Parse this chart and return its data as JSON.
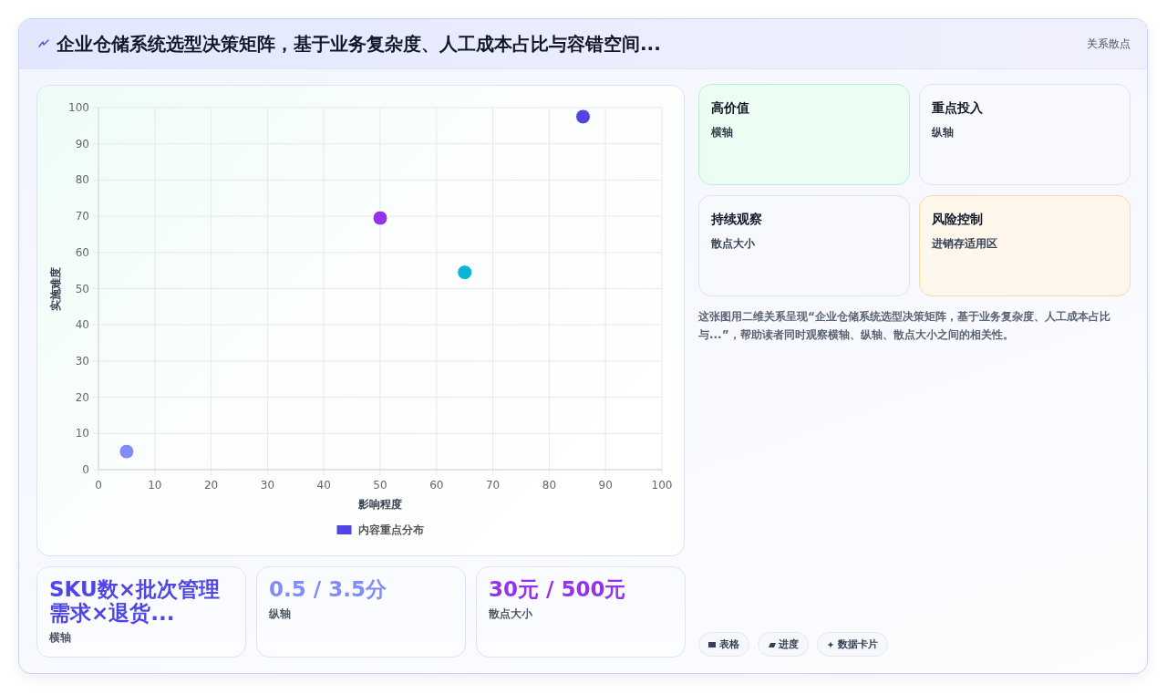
{
  "chart_data": [
    {
      "type": "scatter",
      "title": "企业仓储系统选型决策矩阵，基于业务复杂度、人工成本占比与容错空间...",
      "xlabel": "影响程度",
      "ylabel": "实施难度",
      "xlim": [
        0,
        100
      ],
      "ylim": [
        0,
        100
      ],
      "xticks": [
        0,
        10,
        20,
        30,
        40,
        50,
        60,
        70,
        80,
        90,
        100
      ],
      "yticks": [
        0,
        10,
        20,
        30,
        40,
        50,
        60,
        70,
        80,
        90,
        100
      ],
      "grid": true,
      "legend": "bottom",
      "marker": "circle",
      "annotations": [
        "关系散点"
      ],
      "series": [
        {
          "name": "内容重点分布",
          "color": "#4f46e5",
          "colors": [
            "#818cf8",
            "#9333ea",
            "#06b6d4",
            "#4f46e5"
          ],
          "x": [
            5,
            50,
            65,
            86
          ],
          "values": [
            5,
            69.5,
            54.5,
            97.5
          ]
        }
      ]
    },
    {
      "type": "other",
      "annotations": [
        "高价值",
        "横轴",
        "重点投入",
        "纵轴",
        "持续观察",
        "散点大小",
        "风险控制",
        "进销存适用区",
        "这张图用二维关系呈现“企业仓储系统选型决策矩阵，基于业务复杂度、人工成本占比与...”，帮助读者同时观察横轴、纵轴、散点大小之间的相关性。",
        "表格",
        "进度",
        "数据卡片"
      ]
    },
    {
      "type": "other",
      "annotations": [
        "SKU数×批次管理需求×退货...",
        "横轴",
        "0.5 / 3.5分",
        "纵轴",
        "30元 / 500元",
        "散点大小"
      ]
    }
  ]
}
